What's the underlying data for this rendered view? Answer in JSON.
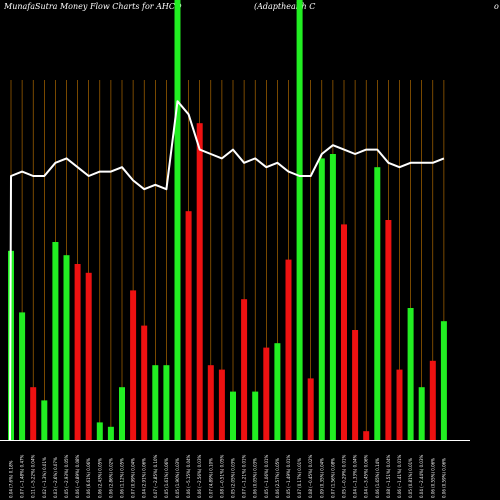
{
  "header": {
    "title_left": "MunafaSutra  Money Flow  Charts for AHCO",
    "title_mid": "(Adapthealth C",
    "title_right": "o"
  },
  "colors": {
    "background": "#000000",
    "grid": "#c87800",
    "bar_up": "#22ee22",
    "bar_down": "#ee1111",
    "line": "#ffffff",
    "axis": "#ffffff",
    "text": "#ffffff"
  },
  "chart_data": {
    "type": "bar",
    "series": [
      {
        "type": "bar",
        "values": [
          43,
          29,
          12,
          9,
          45,
          42,
          40,
          38,
          4,
          3,
          12,
          34,
          26,
          17,
          17,
          100,
          52,
          72,
          17,
          16,
          11,
          32,
          11,
          21,
          22,
          41,
          100,
          14,
          64,
          65,
          49,
          25,
          2,
          62,
          50,
          16,
          30,
          12,
          18,
          27
        ],
        "colors": [
          "green",
          "green",
          "red",
          "green",
          "green",
          "green",
          "red",
          "red",
          "green",
          "green",
          "green",
          "red",
          "red",
          "green",
          "green",
          "green",
          "red",
          "red",
          "red",
          "red",
          "green",
          "red",
          "green",
          "red",
          "green",
          "red",
          "green",
          "red",
          "green",
          "green",
          "red",
          "red",
          "red",
          "green",
          "red",
          "red",
          "green",
          "green",
          "red",
          "green"
        ]
      },
      {
        "type": "line",
        "values": [
          60,
          61,
          60,
          60,
          63,
          64,
          62,
          60,
          61,
          61,
          62,
          59,
          57,
          58,
          57,
          77,
          74,
          66,
          65,
          64,
          66,
          63,
          64,
          62,
          63,
          61,
          60,
          60,
          65,
          67,
          66,
          65,
          66,
          66,
          63,
          62,
          63,
          63,
          63,
          64
        ]
      }
    ],
    "x_labels": [
      "0.04 (7.6%) 0.18%",
      "0.07 (−1.48%) 0.47%",
      "0.11 (−5.22%) 0.04%",
      "0.02 (−1.3%) 0.01%",
      "0.03 (−2.6%) 0.07%",
      "0.05 (−2.93%) 0.05%",
      "0.06 (−0.89%) 0.08%",
      "0.06 (6.61%) 0.06%",
      "0.06 (2.43%) 0.05%",
      "0.06 (2.86%) 0.02%",
      "0.06 (1.12%) 0.05%",
      "0.07 (0.99%) 0.04%",
      "0.04 (2.91%) 0.06%",
      "0.07 (−2.85%) 0.10%",
      "0.05 (1.61%) 0.06%",
      "0.05 (1.90%) 0.03%",
      "0.06 (−5.15%) 0.04%",
      "0.06 (−2.56%) 0.03%",
      "0.07 (4.89%) 0.10%",
      "0.08 (−0.51%) 0.05%",
      "0.05 (2.05%) 0.03%",
      "0.07 (−1.21%) 0.01%",
      "0.06 (0.05%) 0.03%",
      "0.05 (−1.06%) 0.01%",
      "0.06 (2.57%) 0.05%",
      "0.05 (−1.49%) 0.01%",
      "0.07 (0.17%) 0.01%",
      "0.08 (−0.45%) 0.02%",
      "0.09 (0.35%) 0.04%",
      "0.07 (1.56%) 0.08%",
      "0.05 (−0.29%) 0.01%",
      "0.04 (−1.33%) 0.04%",
      "0.04 (−3.45%) 0.06%",
      "0.06 (1.65%) 0.14%",
      "0.08 (−1.51%) 0.04%",
      "0.06 (−1.41%) 0.01%",
      "0.05 (0.81%) 0.01%",
      "0.04 (−2.44%) 0.03%",
      "0.06 (0.55%) 0.06%",
      "0.06 (0.59%) 0.06%"
    ],
    "ylim": [
      0,
      100
    ],
    "grid": true
  }
}
